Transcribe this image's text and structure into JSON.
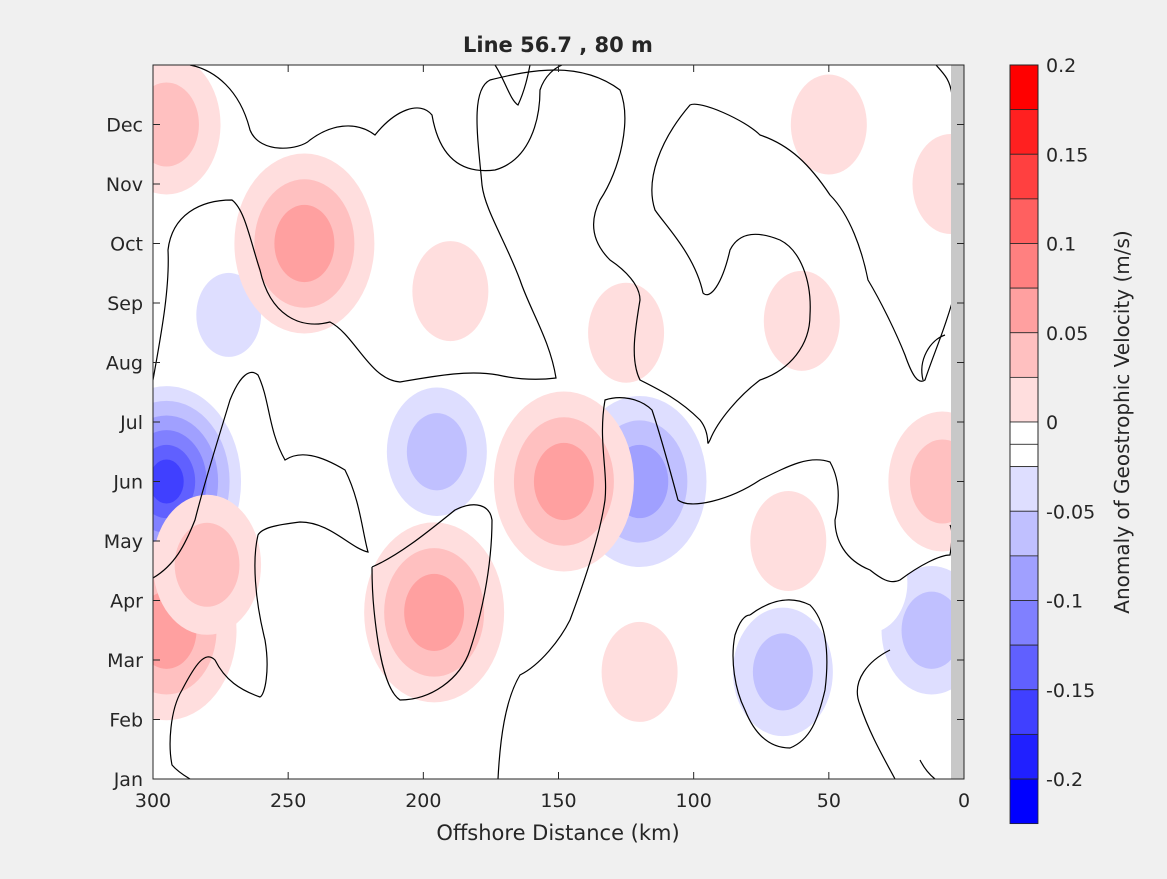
{
  "chart_data": {
    "type": "heatmap",
    "title": "Line 56.7 , 80 m",
    "xlabel": "Offshore Distance (km)",
    "ylabel": "",
    "xlim": [
      300,
      0
    ],
    "x_direction": "reversed",
    "x_ticks": [
      "300",
      "250",
      "200",
      "150",
      "100",
      "50",
      "0"
    ],
    "y_ticks": [
      "Jan",
      "Feb",
      "Mar",
      "Apr",
      "May",
      "Jun",
      "Jul",
      "Aug",
      "Sep",
      "Oct",
      "Nov",
      "Dec"
    ],
    "colorbar": {
      "label": "Anomaly of Geostrophic Velocity (m/s)",
      "range": [
        -0.2,
        0.2
      ],
      "levels": [
        0.2,
        0.175,
        0.15,
        0.125,
        0.1,
        0.075,
        0.05,
        0.025,
        0,
        -0.025,
        -0.05,
        -0.075,
        -0.1,
        -0.125,
        -0.15,
        -0.175,
        -0.2
      ],
      "colors": [
        "#ff0000",
        "#ff2020",
        "#ff4040",
        "#ff6060",
        "#ff8080",
        "#ffa0a0",
        "#ffc0c0",
        "#ffdede",
        "#ffffff",
        "#ffffff",
        "#dedeff",
        "#c0c0ff",
        "#a0a0ff",
        "#8080ff",
        "#6060ff",
        "#4040ff",
        "#2020ff",
        "#0000ff"
      ],
      "tick_labels": [
        "0.2",
        "0.15",
        "0.1",
        "0.05",
        "0",
        "-0.05",
        "-0.1",
        "-0.15",
        "-0.2"
      ]
    },
    "anomaly_features": [
      {
        "x": 295,
        "month": 6.0,
        "value": -0.19
      },
      {
        "x": 272,
        "month": 8.8,
        "value": -0.05
      },
      {
        "x": 195,
        "month": 6.5,
        "value": -0.09
      },
      {
        "x": 120,
        "month": 6.0,
        "value": -0.12
      },
      {
        "x": 67,
        "month": 2.8,
        "value": -0.08
      },
      {
        "x": 12,
        "month": 3.5,
        "value": -0.09
      },
      {
        "x": 35,
        "month": 4.3,
        "value": -0.04
      },
      {
        "x": 190,
        "month": 1.5,
        "value": -0.04
      },
      {
        "x": 140,
        "month": 4.0,
        "value": -0.04
      },
      {
        "x": 283,
        "month": 1.9,
        "value": -0.03
      },
      {
        "x": 295,
        "month": 12.0,
        "value": 0.07
      },
      {
        "x": 295,
        "month": 3.5,
        "value": 0.08
      },
      {
        "x": 280,
        "month": 4.6,
        "value": 0.05
      },
      {
        "x": 244,
        "month": 10.0,
        "value": 0.08
      },
      {
        "x": 196,
        "month": 3.8,
        "value": 0.08
      },
      {
        "x": 148,
        "month": 6.0,
        "value": 0.08
      },
      {
        "x": 190,
        "month": 9.2,
        "value": 0.04
      },
      {
        "x": 125,
        "month": 8.5,
        "value": 0.04
      },
      {
        "x": 60,
        "month": 8.7,
        "value": 0.04
      },
      {
        "x": 50,
        "month": 12.0,
        "value": 0.04
      },
      {
        "x": 65,
        "month": 5.0,
        "value": 0.04
      },
      {
        "x": 120,
        "month": 2.8,
        "value": 0.04
      },
      {
        "x": 8,
        "month": 6.0,
        "value": 0.07
      },
      {
        "x": 5,
        "month": 11.0,
        "value": 0.04
      }
    ]
  }
}
